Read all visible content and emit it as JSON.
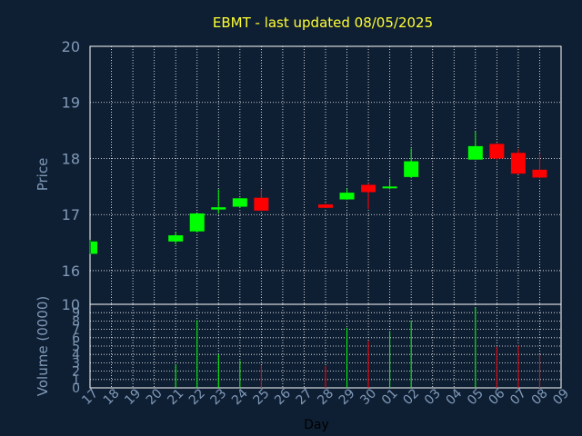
{
  "chart_data": {
    "type": "candlestick",
    "title": "EBMT - last updated 08/05/2025",
    "xlabel": "Day",
    "price_panel": {
      "ylabel": "Price",
      "ylim": [
        15.4,
        20
      ],
      "yticks": [
        "20",
        "19",
        "18",
        "17",
        "16"
      ],
      "ytick_values": [
        20,
        19,
        18,
        17,
        16
      ],
      "grid": true
    },
    "volume_panel": {
      "ylabel": "Volume (0000)",
      "ylim": [
        0,
        10
      ],
      "yticks": [
        "10",
        "9",
        "8",
        "7",
        "6",
        "5",
        "4",
        "3",
        "2",
        "1",
        "0"
      ],
      "ytick_values": [
        10,
        9,
        8,
        7,
        6,
        5,
        4,
        3,
        2,
        1,
        0
      ],
      "grid": true
    },
    "x_tick_labels": [
      "17",
      "18",
      "19",
      "20",
      "21",
      "22",
      "23",
      "24",
      "25",
      "26",
      "27",
      "28",
      "29",
      "30",
      "01",
      "02",
      "03",
      "04",
      "05",
      "06",
      "07",
      "08",
      "09"
    ],
    "colors": {
      "background": "#0f1f33",
      "grid": "#ffffff",
      "axis_text": "#7f99b7",
      "title": "#ffff33",
      "up": "#00ff00",
      "down": "#ff0000"
    },
    "candles": [
      {
        "day": "17",
        "open": 16.3,
        "high": 16.55,
        "low": 16.3,
        "close": 16.52,
        "volume": 0.0
      },
      {
        "day": "21",
        "open": 16.52,
        "high": 16.68,
        "low": 16.47,
        "close": 16.63,
        "volume": 2.8
      },
      {
        "day": "22",
        "open": 16.7,
        "high": 17.02,
        "low": 16.68,
        "close": 17.02,
        "volume": 8.1
      },
      {
        "day": "23",
        "open": 17.09,
        "high": 17.45,
        "low": 17.02,
        "close": 17.13,
        "volume": 4.0
      },
      {
        "day": "24",
        "open": 17.14,
        "high": 17.3,
        "low": 17.12,
        "close": 17.29,
        "volume": 3.3
      },
      {
        "day": "25",
        "open": 17.3,
        "high": 17.45,
        "low": 17.06,
        "close": 17.07,
        "volume": 2.7
      },
      {
        "day": "28",
        "open": 17.18,
        "high": 17.2,
        "low": 17.12,
        "close": 17.12,
        "volume": 2.6
      },
      {
        "day": "29",
        "open": 17.27,
        "high": 17.46,
        "low": 17.26,
        "close": 17.39,
        "volume": 7.2
      },
      {
        "day": "30",
        "open": 17.53,
        "high": 17.56,
        "low": 17.1,
        "close": 17.4,
        "volume": 5.6
      },
      {
        "day": "01",
        "open": 17.47,
        "high": 17.64,
        "low": 17.45,
        "close": 17.5,
        "volume": 6.8
      },
      {
        "day": "02",
        "open": 17.67,
        "high": 18.18,
        "low": 17.65,
        "close": 17.95,
        "volume": 8.0
      },
      {
        "day": "05",
        "open": 17.98,
        "high": 18.48,
        "low": 17.98,
        "close": 18.22,
        "volume": 9.6
      },
      {
        "day": "06",
        "open": 18.26,
        "high": 18.27,
        "low": 17.98,
        "close": 18.0,
        "volume": 4.9
      },
      {
        "day": "07",
        "open": 18.1,
        "high": 18.17,
        "low": 17.72,
        "close": 17.73,
        "volume": 5.1
      },
      {
        "day": "08",
        "open": 17.8,
        "high": 18.08,
        "low": 17.65,
        "close": 17.66,
        "volume": 4.0
      }
    ]
  }
}
